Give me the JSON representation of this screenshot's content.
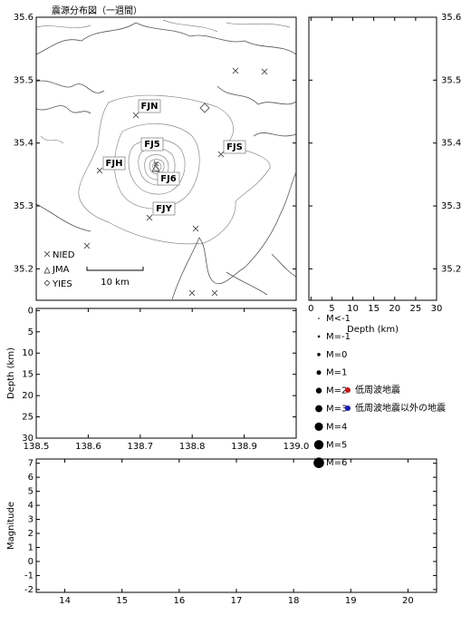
{
  "chart_data": [
    {
      "type": "map",
      "title": "震源分布図（一週間）",
      "ylim": [
        35.15,
        35.6
      ],
      "yticks": [
        35.2,
        35.3,
        35.4,
        35.5,
        35.6
      ],
      "stations": [
        "FJN",
        "FJ5",
        "FJS",
        "FJH",
        "FJ6",
        "FJY"
      ],
      "markers": [
        "NIED",
        "JMA",
        "YIES"
      ],
      "scale": "10 km"
    },
    {
      "type": "scatter",
      "xlabel": "Depth (km)",
      "xlim": [
        -0.5,
        30
      ],
      "xticks": [
        0,
        5,
        10,
        15,
        20,
        25,
        30
      ],
      "ylim": [
        35.15,
        35.6
      ],
      "yticks": [
        35.2,
        35.3,
        35.4,
        35.5,
        35.6
      ]
    },
    {
      "type": "scatter",
      "ylabel": "Depth (km)",
      "xlim": [
        138.5,
        139
      ],
      "xticks": [
        138.5,
        138.6,
        138.7,
        138.8,
        138.9,
        {
          "value": 139,
          "label": "139.0"
        }
      ],
      "ylim": [
        -0.5,
        30
      ],
      "yticks": [
        0,
        5,
        10,
        15,
        20,
        25,
        30
      ],
      "size_legend": [
        "M<-1",
        "M=-1",
        "M=0",
        "M=1",
        "M=2",
        "M=3",
        "M=4",
        "M=5",
        "M=6"
      ],
      "series": [
        {
          "name": "低周波地震",
          "color": "#c01818",
          "values": []
        },
        {
          "name": "低周波地震以外の地震",
          "color": "#1818b0",
          "values": []
        }
      ]
    },
    {
      "type": "scatter",
      "ylabel": "Magnitude",
      "xlim": [
        13.5,
        20.5
      ],
      "xticks": [
        14,
        15,
        16,
        17,
        18,
        19,
        20
      ],
      "ylim": [
        -2.2,
        7.3
      ],
      "yticks": [
        -2,
        -1,
        0,
        1,
        2,
        3,
        4,
        5,
        6,
        7
      ]
    }
  ]
}
